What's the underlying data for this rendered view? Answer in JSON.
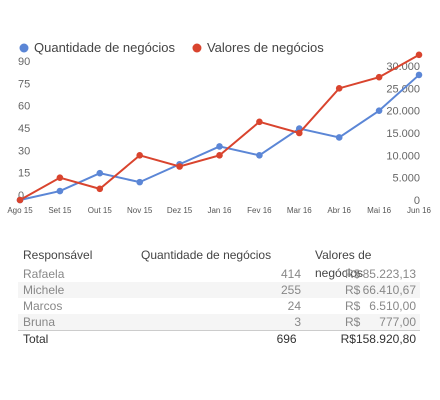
{
  "chart_data": {
    "type": "line",
    "categories": [
      "Ago 15",
      "Set 15",
      "Out 15",
      "Nov 15",
      "Dez 15",
      "Jan 16",
      "Fev 16",
      "Mar 16",
      "Abr 16",
      "Mai 16",
      "Jun 16"
    ],
    "series": [
      {
        "name": "Quantidade de negócios",
        "axis": "left",
        "color": "#5b86d6",
        "values": [
          0,
          6,
          18,
          12,
          24,
          36,
          30,
          48,
          42,
          60,
          84
        ]
      },
      {
        "name": "Valores de negócios",
        "axis": "right",
        "color": "#d9442e",
        "values": [
          0,
          5000,
          2500,
          10000,
          7500,
          10000,
          17500,
          15000,
          25000,
          27500,
          32500
        ]
      }
    ],
    "y_left": {
      "ticks": [
        "0",
        "15",
        "30",
        "45",
        "60",
        "75",
        "90"
      ],
      "range": [
        0,
        90
      ]
    },
    "y_right": {
      "ticks": [
        "0",
        "5.000",
        "10.000",
        "15.000",
        "20.000",
        "25.000",
        "30.000"
      ],
      "range": [
        0,
        30000
      ]
    },
    "legend": "top-left",
    "grid": false
  },
  "table": {
    "headers": [
      "Responsável",
      "Quantidade de negócios",
      "Valores de negócios"
    ],
    "currency": "R$",
    "rows": [
      {
        "name": "Rafaela",
        "qty": "414",
        "value": "85.223,13"
      },
      {
        "name": "Michele",
        "qty": "255",
        "value": "66.410,67"
      },
      {
        "name": "Marcos",
        "qty": "24",
        "value": "6.510,00"
      },
      {
        "name": "Bruna",
        "qty": "3",
        "value": "777,00"
      }
    ],
    "total": {
      "name": "Total",
      "qty": "696",
      "value": "158.920,80"
    }
  }
}
